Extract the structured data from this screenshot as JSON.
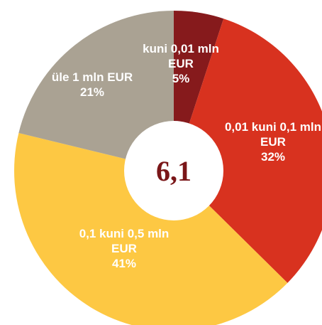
{
  "chart_data": {
    "type": "donut",
    "center_label": "6,1",
    "categories": [
      "kuni 0,01 mln EUR",
      "0,01 kuni 0,1 mln EUR",
      "0,1 kuni 0,5 mln EUR",
      "üle 1 mln EUR"
    ],
    "values": [
      5,
      32,
      41,
      21
    ],
    "value_labels": [
      "5%",
      "32%",
      "41%",
      "21%"
    ],
    "colors": [
      "#861a1c",
      "#d8321f",
      "#fdc843",
      "#aaa293"
    ]
  }
}
